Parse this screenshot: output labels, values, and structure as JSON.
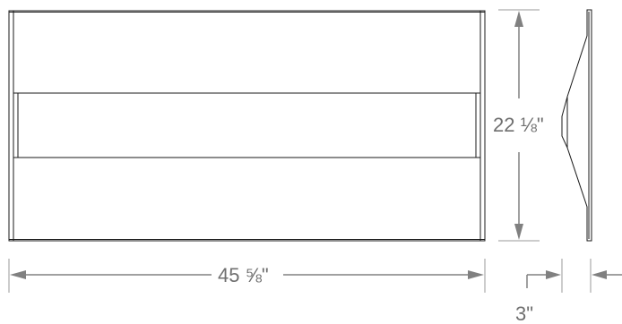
{
  "dimensions": {
    "width": "45 ⅝\"",
    "height": "22 ⅛\"",
    "depth": "3\""
  }
}
